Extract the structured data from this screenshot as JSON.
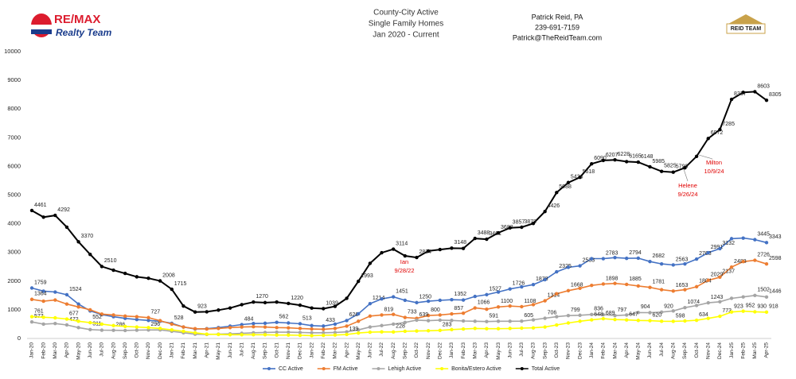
{
  "chart_data": {
    "type": "line",
    "title": [
      "County-City Active",
      "Single Family Homes",
      "Jan 2020 - Current"
    ],
    "header": {
      "brand": "RE/MAX",
      "brand_sub": "Realty Team",
      "contact": [
        "Patrick Reid, PA",
        "239-691-7159",
        "Patrick@TheReidTeam.com"
      ],
      "logo_right": "REID TEAM"
    },
    "annotations": [
      [
        "Ian",
        "9/28/22"
      ],
      [
        "Helene",
        "9/26/24"
      ],
      [
        "Milton",
        "10/9/24"
      ]
    ],
    "categories": [
      "Jan-20",
      "Feb-20",
      "Mar-20",
      "Apr-20",
      "May-20",
      "Jun-20",
      "Jul-20",
      "Aug-20",
      "Sep-20",
      "Oct-20",
      "Nov-20",
      "Dec-20",
      "Jan-21",
      "Feb-21",
      "Mar-21",
      "Apr-21",
      "May-21",
      "Jun-21",
      "Jul-21",
      "Aug-21",
      "Sep-21",
      "Oct-21",
      "Nov-21",
      "Dec-21",
      "Jan-22",
      "Feb-22",
      "Mar-22",
      "Apr-22",
      "May-22",
      "Jun-22",
      "Jul-22",
      "Aug-22",
      "Sep-22",
      "Oct-22",
      "Nov-22",
      "Dec-22",
      "Jan-23",
      "Feb-23",
      "Mar-23",
      "Apr-23",
      "May-23",
      "Jun-23",
      "Jul-23",
      "Aug-23",
      "Sep-23",
      "Oct-23",
      "Nov-23",
      "Dec-23",
      "Jan-24",
      "Feb-24",
      "Mar-24",
      "Apr-24",
      "May-24",
      "Jun-24",
      "Jul-24",
      "Aug-24",
      "Sep-24",
      "Oct-24",
      "Nov-24",
      "Dec-24",
      "Jan-25",
      "Feb-25",
      "Mar-25",
      "Apr-25"
    ],
    "ylim": [
      0,
      10000
    ],
    "yticks": [
      0,
      1000,
      2000,
      3000,
      4000,
      5000,
      6000,
      7000,
      8000,
      9000,
      10000
    ],
    "grid": false,
    "series": [
      {
        "name": "CC Active",
        "color": "#4472c4",
        "values": [
          1759,
          1650,
          1620,
          1524,
          1200,
          960,
          830,
          760,
          700,
          660,
          630,
          600,
          528,
          400,
          330,
          340,
          380,
          430,
          484,
          520,
          530,
          562,
          540,
          513,
          450,
          433,
          500,
          626,
          860,
          1214,
          1380,
          1451,
          1330,
          1250,
          1300,
          1330,
          1352,
          1340,
          1466,
          1527,
          1620,
          1726,
          1800,
          1878,
          2050,
          2325,
          2480,
          2533,
          2783,
          2783,
          2820,
          2794,
          2800,
          2682,
          2600,
          2563,
          2600,
          2768,
          2991,
          3132,
          3480,
          3500,
          3445,
          3343
        ],
        "value_labels": [
          "1759",
          null,
          null,
          "1524",
          null,
          null,
          null,
          null,
          null,
          null,
          null,
          null,
          "528",
          null,
          null,
          null,
          null,
          null,
          "484",
          null,
          null,
          "562",
          null,
          "513",
          null,
          "433",
          null,
          "626",
          null,
          "1214",
          null,
          "1451",
          null,
          "1250",
          null,
          null,
          "1352",
          null,
          null,
          "1527",
          null,
          "1726",
          null,
          "1878",
          null,
          "2325",
          null,
          "2533",
          null,
          "2783",
          null,
          "2794",
          null,
          "2682",
          null,
          "2563",
          null,
          "2768",
          "2991",
          "3132",
          null,
          null,
          "3445",
          "3343"
        ]
      },
      {
        "name": "FM Active",
        "color": "#ed7d31",
        "values": [
          1364,
          1300,
          1340,
          1200,
          1100,
          1000,
          850,
          820,
          780,
          760,
          727,
          620,
          500,
          400,
          340,
          330,
          350,
          380,
          400,
          410,
          400,
          380,
          370,
          350,
          330,
          320,
          350,
          430,
          600,
          780,
          819,
          840,
          733,
          700,
          800,
          820,
          857,
          880,
          1066,
          1020,
          1100,
          1130,
          1108,
          1180,
          1314,
          1560,
          1668,
          1750,
          1850,
          1898,
          1920,
          1885,
          1830,
          1781,
          1700,
          1653,
          1700,
          1804,
          2029,
          2137,
          2488,
          2680,
          2726,
          2598
        ],
        "value_labels": [
          "1364",
          null,
          null,
          null,
          null,
          null,
          null,
          null,
          null,
          null,
          "727",
          null,
          null,
          null,
          null,
          null,
          null,
          null,
          null,
          null,
          null,
          null,
          null,
          null,
          null,
          null,
          null,
          null,
          null,
          null,
          "819",
          null,
          "733",
          null,
          "800",
          null,
          "857",
          null,
          "1066",
          null,
          "1100",
          null,
          "1108",
          null,
          "1314",
          null,
          "1668",
          null,
          null,
          "1898",
          null,
          "1885",
          null,
          "1781",
          null,
          "1653",
          null,
          "1804",
          "2029",
          "2137",
          "2488",
          null,
          "2726",
          "2598"
        ]
      },
      {
        "name": "Lehigh Active",
        "color": "#a5a5a5",
        "values": [
          577,
          500,
          520,
          472,
          380,
          311,
          290,
          286,
          280,
          290,
          296,
          300,
          250,
          200,
          150,
          140,
          150,
          160,
          180,
          200,
          210,
          220,
          220,
          210,
          200,
          200,
          210,
          230,
          300,
          400,
          450,
          500,
          560,
          639,
          620,
          640,
          630,
          610,
          600,
          591,
          600,
          600,
          605,
          650,
          706,
          760,
          799,
          810,
          836,
          830,
          797,
          820,
          904,
          900,
          920,
          960,
          1074,
          1150,
          1243,
          1280,
          1400,
          1450,
          1502,
          1446
        ],
        "value_labels": [
          "577",
          null,
          null,
          "472",
          null,
          "311",
          null,
          "286",
          null,
          null,
          "296",
          null,
          null,
          null,
          null,
          null,
          null,
          null,
          null,
          null,
          null,
          null,
          null,
          null,
          null,
          null,
          null,
          null,
          null,
          null,
          null,
          null,
          null,
          "639",
          null,
          null,
          null,
          null,
          null,
          "591",
          null,
          null,
          "605",
          null,
          "706",
          null,
          "799",
          null,
          "836",
          null,
          "797",
          null,
          "904",
          null,
          "920",
          null,
          "1074",
          null,
          "1243",
          null,
          null,
          null,
          "1502",
          "1446"
        ]
      },
      {
        "name": "Bonita/Estero Active",
        "color": "#ffff00",
        "values": [
          761,
          740,
          720,
          677,
          600,
          552,
          500,
          450,
          420,
          400,
          380,
          350,
          300,
          250,
          200,
          150,
          140,
          130,
          130,
          130,
          130,
          120,
          120,
          110,
          100,
          110,
          120,
          139,
          190,
          220,
          230,
          228,
          250,
          260,
          270,
          283,
          310,
          330,
          350,
          340,
          340,
          350,
          360,
          370,
          400,
          470,
          540,
          600,
          648,
          689,
          660,
          647,
          630,
          620,
          600,
          598,
          610,
          634,
          700,
          773,
          923,
          952,
          930,
          918
        ],
        "value_labels": [
          "761",
          null,
          null,
          "677",
          null,
          "552",
          null,
          null,
          null,
          null,
          null,
          null,
          null,
          null,
          null,
          null,
          null,
          null,
          null,
          null,
          null,
          null,
          null,
          null,
          null,
          null,
          null,
          "139",
          null,
          null,
          null,
          "228",
          null,
          null,
          null,
          "283",
          null,
          null,
          null,
          null,
          null,
          null,
          null,
          null,
          null,
          null,
          null,
          null,
          "648",
          "689",
          null,
          "647",
          null,
          "620",
          null,
          "598",
          null,
          "634",
          null,
          "773",
          "923",
          "952",
          "930",
          "918"
        ]
      },
      {
        "name": "Total Active",
        "color": "#000000",
        "values": [
          4461,
          4230,
          4292,
          3880,
          3370,
          2930,
          2510,
          2380,
          2270,
          2150,
          2100,
          2008,
          1715,
          1130,
          923,
          930,
          990,
          1060,
          1180,
          1270,
          1250,
          1270,
          1220,
          1160,
          1060,
          1039,
          1120,
          1400,
          1993,
          2620,
          2990,
          3114,
          2880,
          2824,
          3050,
          3100,
          3148,
          3140,
          3488,
          3461,
          3683,
          3857,
          3878,
          4010,
          4426,
          5088,
          5436,
          5618,
          6090,
          6207,
          6228,
          6165,
          6148,
          5985,
          5825,
          5799,
          5950,
          6350,
          6972,
          7285,
          8337,
          8580,
          8603,
          8305
        ],
        "value_labels": [
          "4461",
          null,
          "4292",
          null,
          "3370",
          null,
          "2510",
          null,
          null,
          null,
          null,
          "2008",
          "1715",
          null,
          "923",
          null,
          null,
          null,
          null,
          "1270",
          null,
          null,
          "1220",
          null,
          null,
          "1039",
          null,
          null,
          "1993",
          null,
          null,
          "3114",
          null,
          "2824",
          null,
          null,
          "3148",
          null,
          "3488",
          "3461",
          "3683",
          "3857",
          "3878",
          null,
          "4426",
          "5088",
          "5436",
          "5618",
          "6090",
          "6207",
          "6228",
          "6165",
          "6148",
          "5985",
          "5825",
          "5799",
          null,
          null,
          "6972",
          "7285",
          "8337",
          null,
          "8603",
          "8305"
        ]
      }
    ]
  }
}
